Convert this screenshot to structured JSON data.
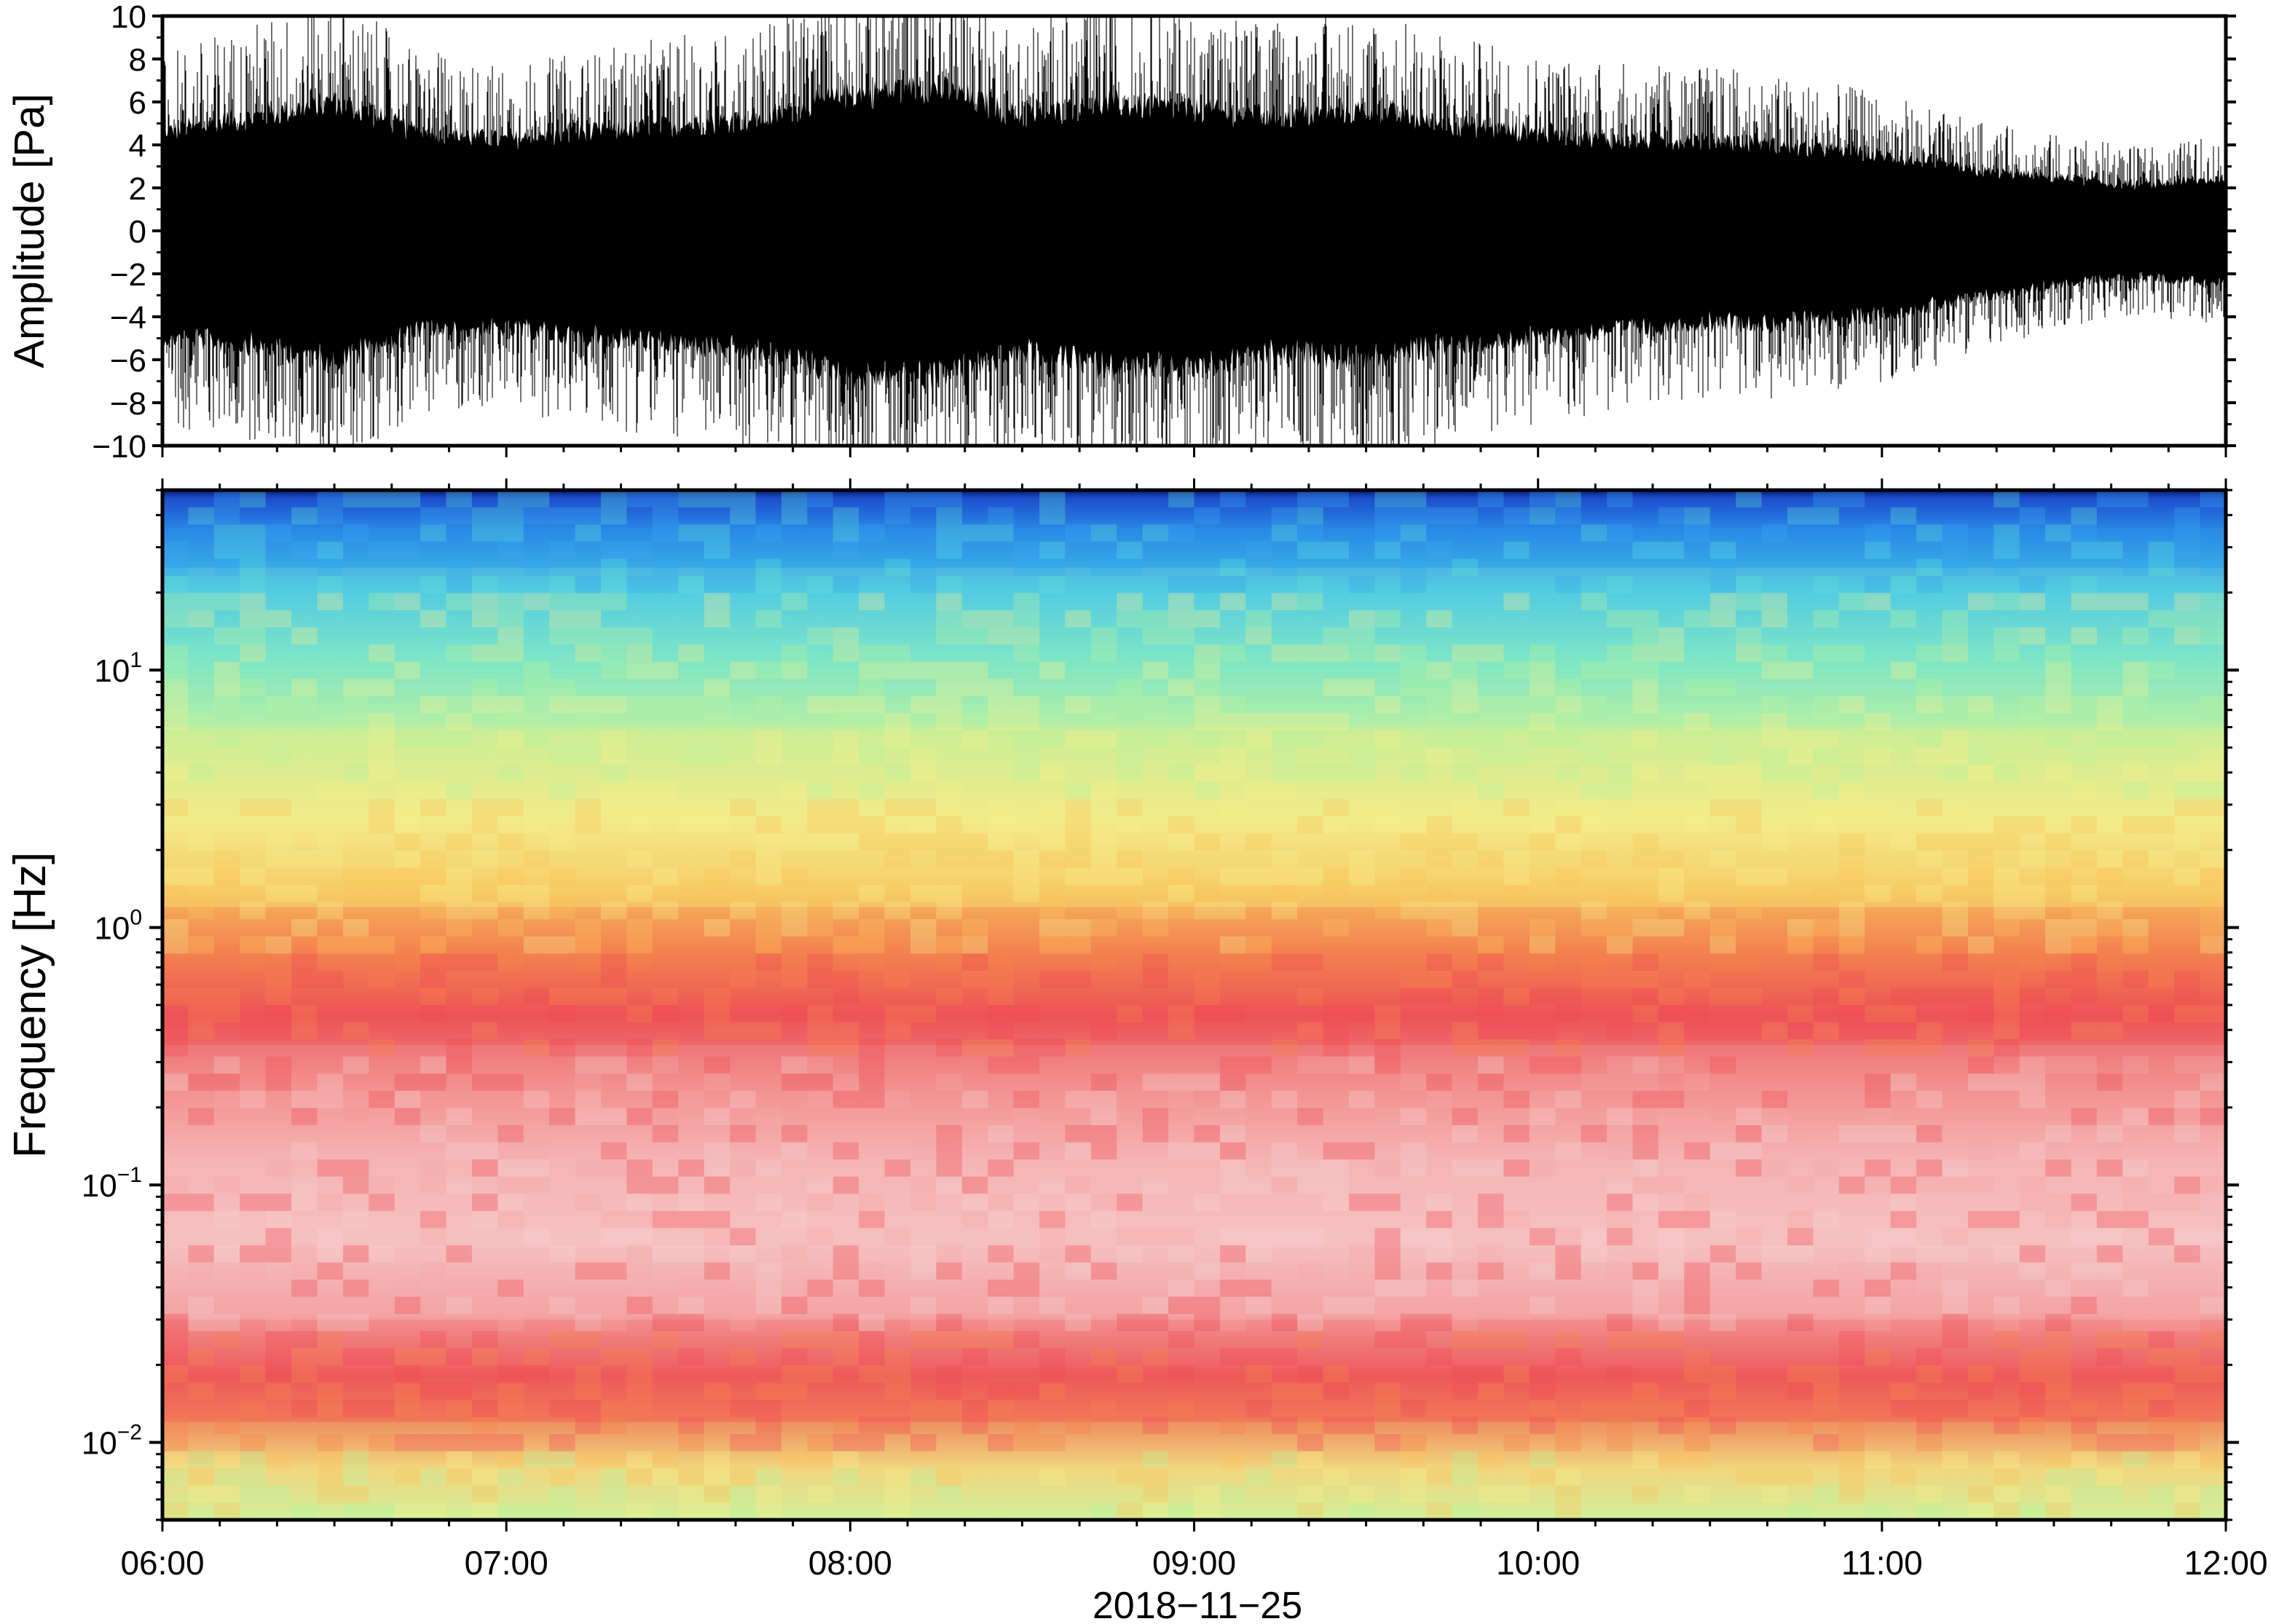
{
  "chart_data": [
    {
      "type": "line",
      "panel": "waveform",
      "ylabel": "Amplitude [Pa]",
      "ylim": [
        -10,
        10
      ],
      "yticks": [
        -10,
        -8,
        -6,
        -4,
        -2,
        0,
        2,
        4,
        6,
        8,
        10
      ],
      "ytick_labels": [
        "−10",
        "−8",
        "−6",
        "−4",
        "−2",
        "0",
        "2",
        "4",
        "6",
        "8",
        "10"
      ],
      "xlim": [
        "06:00",
        "12:00"
      ],
      "grid": false,
      "series": [
        {
          "x": [
            "06:00",
            "06:15",
            "06:30",
            "06:45",
            "07:00",
            "07:15",
            "07:30",
            "07:45",
            "08:00",
            "08:15",
            "08:30",
            "08:45",
            "09:00",
            "09:15",
            "09:30",
            "09:45",
            "10:00",
            "10:15",
            "10:30",
            "10:45",
            "11:00",
            "11:15",
            "11:30",
            "11:45",
            "12:00"
          ],
          "envelope_max": [
            6.5,
            7.5,
            8.5,
            6.5,
            6.0,
            6.5,
            7.0,
            7.5,
            9.0,
            9.5,
            7.5,
            8.5,
            8.0,
            7.5,
            8.0,
            7.0,
            6.5,
            6.0,
            6.0,
            5.5,
            5.0,
            4.0,
            3.5,
            3.0,
            3.5
          ],
          "envelope_min": [
            -7.0,
            -7.5,
            -8.5,
            -6.5,
            -6.5,
            -7.0,
            -7.5,
            -8.0,
            -9.5,
            -9.5,
            -8.0,
            -9.0,
            -9.0,
            -8.0,
            -8.5,
            -7.5,
            -7.0,
            -6.5,
            -6.0,
            -6.0,
            -5.5,
            -4.5,
            -3.5,
            -3.0,
            -3.5
          ]
        }
      ]
    },
    {
      "type": "heatmap",
      "panel": "spectrogram",
      "ylabel": "Frequency [Hz]",
      "y_scale": "log",
      "ylim": [
        0.005,
        50
      ],
      "yticks": [
        0.01,
        0.1,
        1,
        10
      ],
      "ytick_labels": [
        {
          "base": "10",
          "exp": "−2"
        },
        {
          "base": "10",
          "exp": "−1"
        },
        {
          "base": "10",
          "exp": "0"
        },
        {
          "base": "10",
          "exp": "1"
        }
      ],
      "xlabel": "2018−11−25",
      "xlim": [
        "06:00",
        "12:00"
      ],
      "xticks": [
        "06:00",
        "07:00",
        "08:00",
        "09:00",
        "10:00",
        "11:00",
        "12:00"
      ],
      "colormap": [
        "#00005a",
        "#1a5fd6",
        "#37a8f0",
        "#5ee0d8",
        "#b6f3a0",
        "#f5f08c",
        "#fbc45a",
        "#f5824e",
        "#ee4b55",
        "#f7a8a8",
        "#f6d0d0"
      ],
      "bands": [
        {
          "f_low": 0.005,
          "f_high": 0.012,
          "color": "#e6ec8f"
        },
        {
          "f_low": 0.012,
          "f_high": 0.03,
          "color": "#ee5a5a"
        },
        {
          "f_low": 0.03,
          "f_high": 0.35,
          "color": "#f5b0b0"
        },
        {
          "f_low": 0.35,
          "f_high": 1.2,
          "color": "#ef5a55"
        },
        {
          "f_low": 1.2,
          "f_high": 6,
          "color": "#f5dc7a"
        },
        {
          "f_low": 6,
          "f_high": 25,
          "color": "#8ee6c2"
        },
        {
          "f_low": 25,
          "f_high": 50,
          "color": "#2f8ee8"
        }
      ]
    }
  ]
}
